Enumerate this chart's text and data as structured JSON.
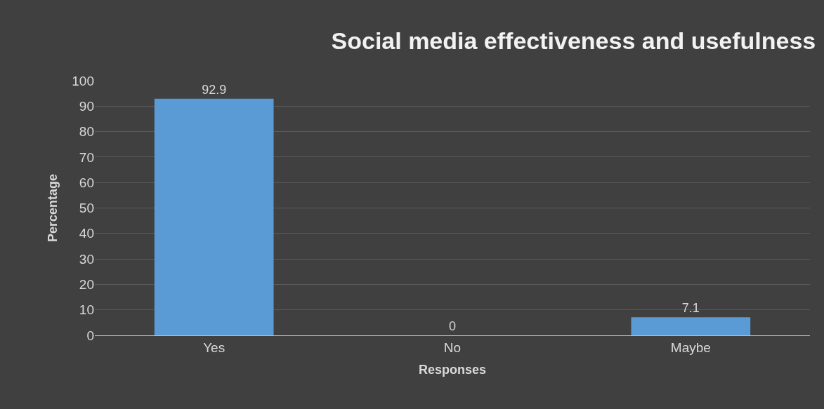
{
  "chart_data": {
    "type": "bar",
    "title": "Social media effectiveness and usefulness",
    "xlabel": "Responses",
    "ylabel": "Percentage",
    "categories": [
      "Yes",
      "No",
      "Maybe"
    ],
    "values": [
      92.9,
      0,
      7.1
    ],
    "color": "#5b9bd5",
    "ylim": [
      0,
      100
    ],
    "yticks": [
      0,
      10,
      20,
      30,
      40,
      50,
      60,
      70,
      80,
      90,
      100
    ],
    "grid": "y",
    "legend": false,
    "data_labels": true
  }
}
